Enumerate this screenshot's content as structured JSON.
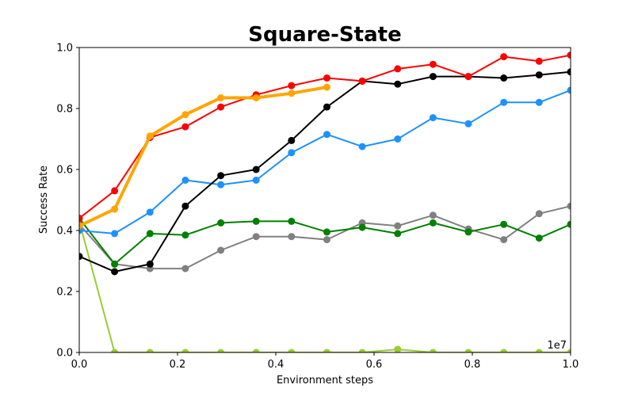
{
  "chart_data": {
    "type": "line",
    "title": "Square-State",
    "xlabel": "Environment steps",
    "ylabel": "Success Rate",
    "x_offset_text": "1e7",
    "xlim": [
      0.0,
      1.0
    ],
    "ylim": [
      0.0,
      1.0
    ],
    "xticks": [
      "0.0",
      "0.2",
      "0.4",
      "0.6",
      "0.8",
      "1.0"
    ],
    "yticks": [
      "0.0",
      "0.2",
      "0.4",
      "0.6",
      "0.8",
      "1.0"
    ],
    "grid": false,
    "series": [
      {
        "color": "#9acd32",
        "width": 2,
        "points": [
          [
            0.0,
            0.43
          ],
          [
            0.072,
            0.0
          ],
          [
            0.144,
            0.0
          ],
          [
            0.216,
            0.0
          ],
          [
            0.288,
            0.0
          ],
          [
            0.36,
            0.0
          ],
          [
            0.432,
            0.0
          ],
          [
            0.504,
            0.0
          ],
          [
            0.576,
            0.0
          ],
          [
            0.648,
            0.01
          ],
          [
            0.72,
            0.0
          ],
          [
            0.792,
            0.0
          ],
          [
            0.864,
            0.0
          ],
          [
            0.936,
            0.0
          ],
          [
            1.0,
            0.0
          ]
        ]
      },
      {
        "color": "#808080",
        "width": 2,
        "points": [
          [
            0.0,
            0.42
          ],
          [
            0.072,
            0.29
          ],
          [
            0.144,
            0.275
          ],
          [
            0.216,
            0.275
          ],
          [
            0.288,
            0.335
          ],
          [
            0.36,
            0.38
          ],
          [
            0.432,
            0.38
          ],
          [
            0.504,
            0.37
          ],
          [
            0.576,
            0.425
          ],
          [
            0.648,
            0.415
          ],
          [
            0.72,
            0.45
          ],
          [
            0.792,
            0.405
          ],
          [
            0.864,
            0.37
          ],
          [
            0.936,
            0.455
          ],
          [
            1.0,
            0.48
          ]
        ]
      },
      {
        "color": "#008000",
        "width": 2,
        "points": [
          [
            0.0,
            0.44
          ],
          [
            0.072,
            0.29
          ],
          [
            0.144,
            0.39
          ],
          [
            0.216,
            0.385
          ],
          [
            0.288,
            0.425
          ],
          [
            0.36,
            0.43
          ],
          [
            0.432,
            0.43
          ],
          [
            0.504,
            0.395
          ],
          [
            0.576,
            0.41
          ],
          [
            0.648,
            0.39
          ],
          [
            0.72,
            0.425
          ],
          [
            0.792,
            0.395
          ],
          [
            0.864,
            0.42
          ],
          [
            0.936,
            0.375
          ],
          [
            1.0,
            0.42
          ]
        ]
      },
      {
        "color": "#1e90ff",
        "width": 2,
        "points": [
          [
            0.0,
            0.4
          ],
          [
            0.072,
            0.39
          ],
          [
            0.144,
            0.46
          ],
          [
            0.216,
            0.565
          ],
          [
            0.288,
            0.55
          ],
          [
            0.36,
            0.565
          ],
          [
            0.432,
            0.655
          ],
          [
            0.504,
            0.715
          ],
          [
            0.576,
            0.675
          ],
          [
            0.648,
            0.7
          ],
          [
            0.72,
            0.77
          ],
          [
            0.792,
            0.75
          ],
          [
            0.864,
            0.82
          ],
          [
            0.936,
            0.82
          ],
          [
            1.0,
            0.86
          ]
        ]
      },
      {
        "color": "#000000",
        "width": 2,
        "points": [
          [
            0.0,
            0.315
          ],
          [
            0.072,
            0.265
          ],
          [
            0.144,
            0.29
          ],
          [
            0.216,
            0.48
          ],
          [
            0.288,
            0.58
          ],
          [
            0.36,
            0.6
          ],
          [
            0.432,
            0.695
          ],
          [
            0.504,
            0.805
          ],
          [
            0.576,
            0.89
          ],
          [
            0.648,
            0.88
          ],
          [
            0.72,
            0.905
          ],
          [
            0.792,
            0.905
          ],
          [
            0.864,
            0.9
          ],
          [
            0.936,
            0.91
          ],
          [
            1.0,
            0.92
          ]
        ]
      },
      {
        "color": "#ff0000",
        "width": 2,
        "points": [
          [
            0.0,
            0.44
          ],
          [
            0.072,
            0.53
          ],
          [
            0.144,
            0.705
          ],
          [
            0.216,
            0.74
          ],
          [
            0.288,
            0.805
          ],
          [
            0.36,
            0.845
          ],
          [
            0.432,
            0.875
          ],
          [
            0.504,
            0.9
          ],
          [
            0.576,
            0.89
          ],
          [
            0.648,
            0.93
          ],
          [
            0.72,
            0.945
          ],
          [
            0.792,
            0.905
          ],
          [
            0.864,
            0.97
          ],
          [
            0.936,
            0.955
          ],
          [
            1.0,
            0.975
          ]
        ]
      },
      {
        "color": "#ffa500",
        "width": 4,
        "points": [
          [
            0.0,
            0.415
          ],
          [
            0.072,
            0.47
          ],
          [
            0.144,
            0.71
          ],
          [
            0.216,
            0.78
          ],
          [
            0.288,
            0.835
          ],
          [
            0.36,
            0.835
          ],
          [
            0.432,
            0.85
          ],
          [
            0.504,
            0.87
          ]
        ]
      }
    ]
  }
}
